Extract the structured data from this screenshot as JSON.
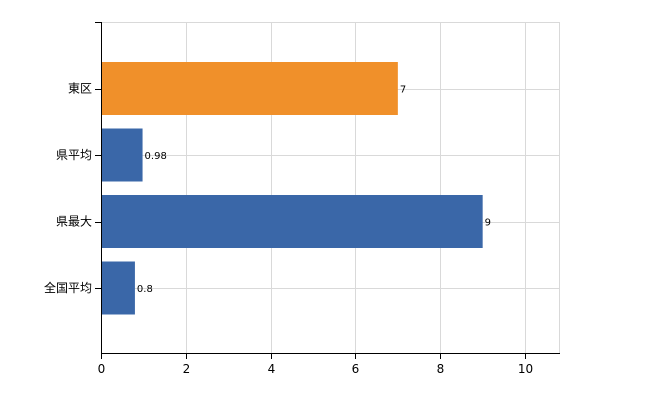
{
  "chart_data": {
    "type": "bar",
    "orientation": "horizontal",
    "categories": [
      "東区",
      "県平均",
      "県最大",
      "全国平均"
    ],
    "values": [
      7,
      0.98,
      9,
      0.8
    ],
    "data_labels": [
      "7",
      "0.98",
      "9",
      "0.8"
    ],
    "bar_colors": [
      "#f0902a",
      "#3a67a8",
      "#3a67a8",
      "#3a67a8"
    ],
    "xlim": [
      0,
      10.8
    ],
    "xticks": [
      0,
      2,
      4,
      6,
      8,
      10
    ],
    "xtick_labels": [
      "0",
      "2",
      "4",
      "6",
      "8",
      "10"
    ],
    "grid": true,
    "title": "",
    "xlabel": "",
    "ylabel": ""
  }
}
